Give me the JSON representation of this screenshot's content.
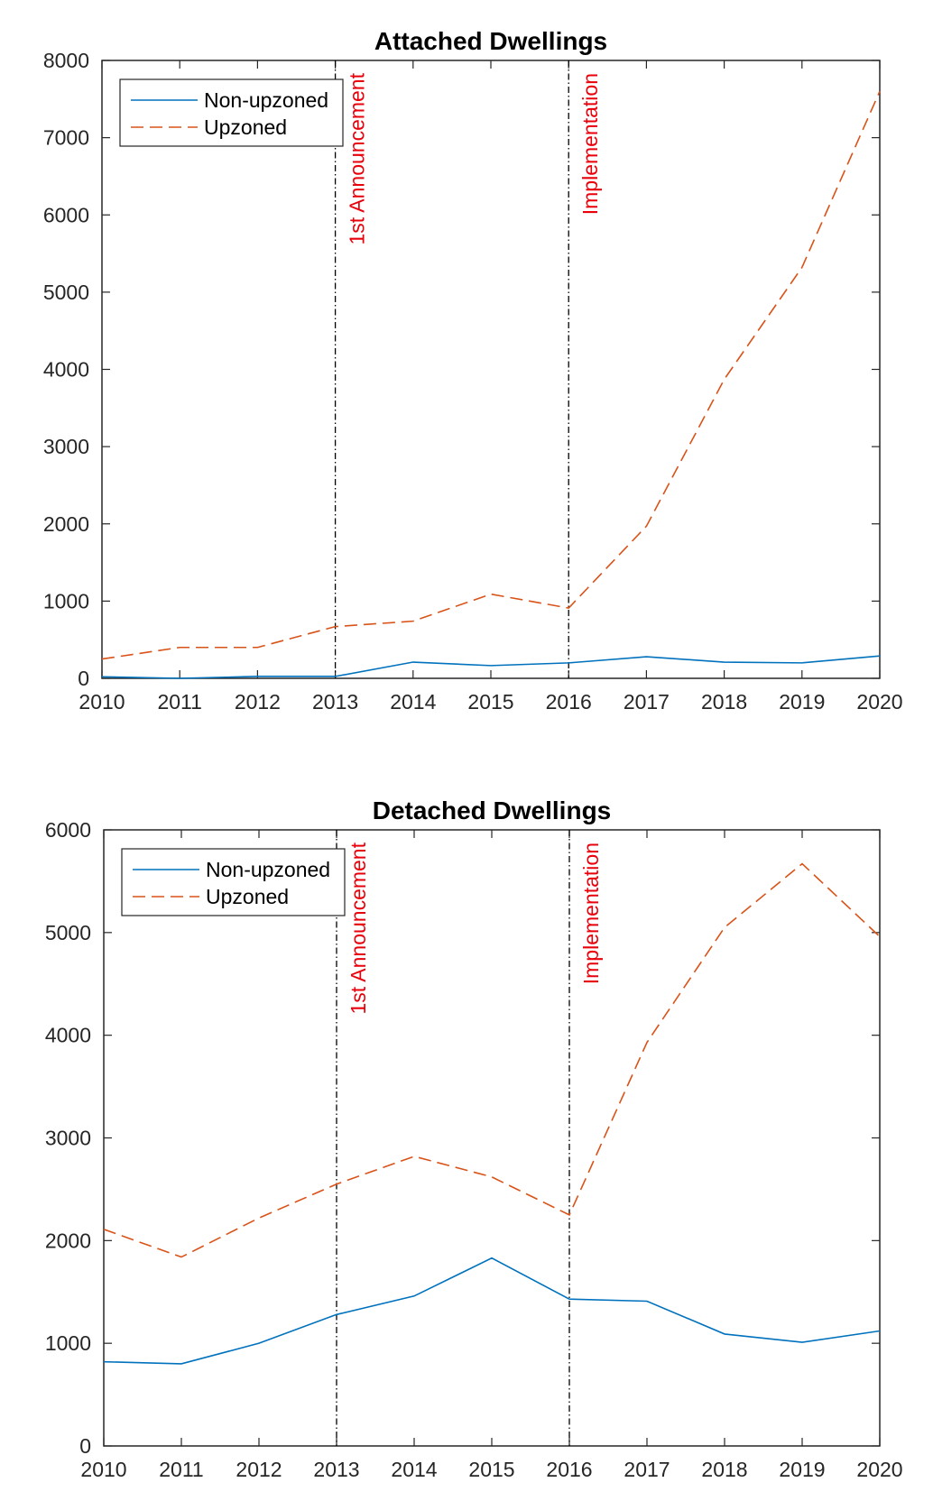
{
  "chart_data": [
    {
      "type": "line",
      "title": "Attached Dwellings",
      "xlabel": "",
      "ylabel": "",
      "x": [
        2010,
        2011,
        2012,
        2013,
        2014,
        2015,
        2016,
        2017,
        2018,
        2019,
        2020
      ],
      "xlim": [
        2010,
        2020
      ],
      "ylim": [
        0,
        8000
      ],
      "yticks": [
        0,
        1000,
        2000,
        3000,
        4000,
        5000,
        6000,
        7000,
        8000
      ],
      "legend_position": "top-left",
      "grid": false,
      "series": [
        {
          "name": "Non-upzoned",
          "style": "solid",
          "color": "#0072BD",
          "values": [
            20,
            0,
            25,
            25,
            210,
            165,
            200,
            280,
            210,
            200,
            290
          ]
        },
        {
          "name": "Upzoned",
          "style": "dashed",
          "color": "#D95319",
          "values": [
            250,
            400,
            400,
            670,
            740,
            1090,
            910,
            1970,
            3870,
            5320,
            7600
          ]
        }
      ],
      "vlines": [
        {
          "x": 2013,
          "label": "1st Announcement",
          "color": "#E8000B"
        },
        {
          "x": 2016,
          "label": "Implementation",
          "color": "#E8000B"
        }
      ]
    },
    {
      "type": "line",
      "title": "Detached Dwellings",
      "xlabel": "",
      "ylabel": "",
      "x": [
        2010,
        2011,
        2012,
        2013,
        2014,
        2015,
        2016,
        2017,
        2018,
        2019,
        2020
      ],
      "xlim": [
        2010,
        2020
      ],
      "ylim": [
        0,
        6000
      ],
      "yticks": [
        0,
        1000,
        2000,
        3000,
        4000,
        5000,
        6000
      ],
      "legend_position": "top-left",
      "grid": false,
      "series": [
        {
          "name": "Non-upzoned",
          "style": "solid",
          "color": "#0072BD",
          "values": [
            820,
            800,
            1000,
            1280,
            1460,
            1830,
            1430,
            1410,
            1090,
            1010,
            1120
          ]
        },
        {
          "name": "Upzoned",
          "style": "dashed",
          "color": "#D95319",
          "values": [
            2110,
            1840,
            2220,
            2550,
            2820,
            2620,
            2250,
            3930,
            5050,
            5670,
            4960
          ]
        }
      ],
      "vlines": [
        {
          "x": 2013,
          "label": "1st Announcement",
          "color": "#E8000B"
        },
        {
          "x": 2016,
          "label": "Implementation",
          "color": "#E8000B"
        }
      ]
    }
  ]
}
